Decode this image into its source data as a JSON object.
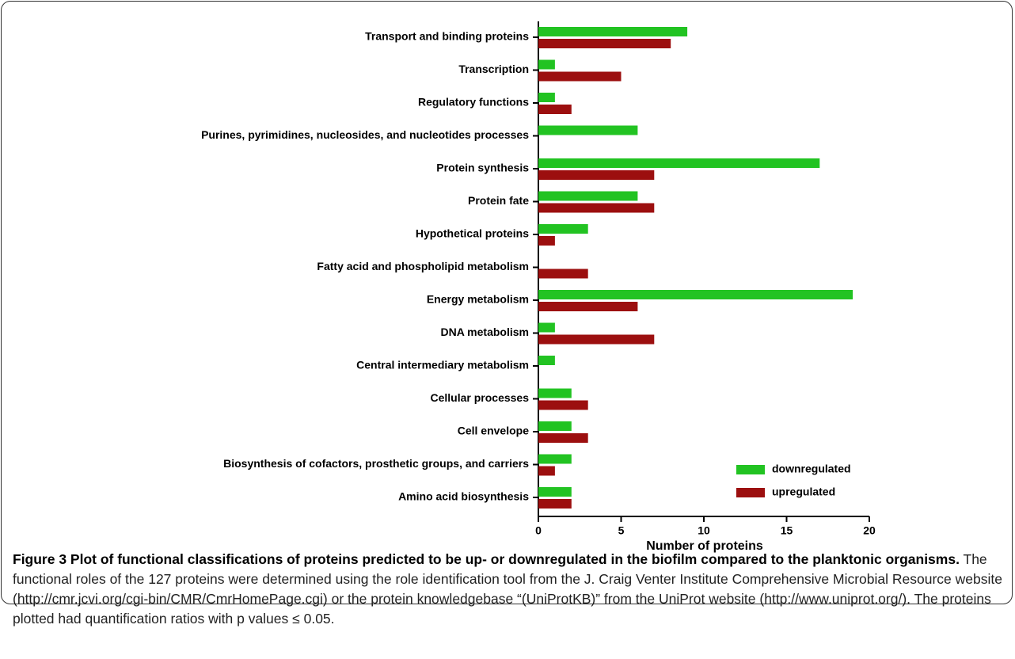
{
  "chart_data": {
    "type": "barh",
    "xlabel": "Number of proteins",
    "categories": [
      "Transport and binding proteins",
      "Transcription",
      "Regulatory functions",
      "Purines, pyrimidines, nucleosides, and nucleotides processes",
      "Protein synthesis",
      "Protein fate",
      "Hypothetical proteins",
      "Fatty acid and phospholipid metabolism",
      "Energy metabolism",
      "DNA metabolism",
      "Central intermediary metabolism",
      "Cellular processes",
      "Cell envelope",
      "Biosynthesis of cofactors, prosthetic groups, and carriers",
      "Amino acid biosynthesis"
    ],
    "series": [
      {
        "name": "downregulated",
        "color": "#22c322",
        "values": [
          9,
          1,
          1,
          6,
          17,
          6,
          3,
          0,
          19,
          1,
          1,
          2,
          2,
          2,
          2
        ]
      },
      {
        "name": "upregulated",
        "color": "#9c0f0f",
        "values": [
          8,
          5,
          2,
          0,
          7,
          7,
          1,
          3,
          6,
          7,
          0,
          3,
          3,
          1,
          2
        ]
      }
    ],
    "xlim": [
      0,
      20
    ],
    "xticks": [
      0,
      5,
      10,
      15,
      20
    ],
    "legend": "lower-right"
  },
  "caption": {
    "title": "Figure 3 Plot of functional classifications of proteins predicted to be up- or downregulated in the biofilm compared to the planktonic organisms.",
    "text": "The functional roles of the 127 proteins were determined using the role identification tool from the J. Craig Venter Institute Comprehensive Microbial Resource website (http://cmr.jcvi.org/cgi-bin/CMR/CmrHomePage.cgi) or the protein knowledgebase “(UniProtKB)” from the UniProt website (http://www.uniprot.org/). The proteins plotted had quantification ratios with p values ≤ 0.05."
  }
}
